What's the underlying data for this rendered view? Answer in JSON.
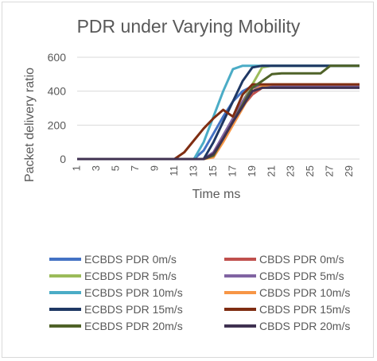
{
  "chart_data": {
    "type": "line",
    "title": "PDR under Varying Mobility",
    "xlabel": "Time ms",
    "ylabel": "Packet delivery ratio",
    "xlim": [
      1,
      30
    ],
    "ylim": [
      0,
      600
    ],
    "yticks": [
      0,
      200,
      400,
      600
    ],
    "xtick_labels": [
      "1",
      "3",
      "5",
      "7",
      "9",
      "11",
      "13",
      "15",
      "17",
      "19",
      "21",
      "23",
      "25",
      "27",
      "29"
    ],
    "x": [
      1,
      2,
      3,
      4,
      5,
      6,
      7,
      8,
      9,
      10,
      11,
      12,
      13,
      14,
      15,
      16,
      17,
      18,
      19,
      20,
      21,
      22,
      23,
      24,
      25,
      26,
      27,
      28,
      29,
      30
    ],
    "grid": "horizontal",
    "legend_position": "bottom",
    "series": [
      {
        "name": "ECBDS PDR 0m/s",
        "color": "#4472c4",
        "values": [
          0,
          0,
          0,
          0,
          0,
          0,
          0,
          0,
          0,
          0,
          0,
          0,
          0,
          50,
          150,
          250,
          340,
          400,
          430,
          430,
          430,
          430,
          430,
          430,
          430,
          430,
          430,
          430,
          430,
          430
        ]
      },
      {
        "name": "CBDS PDR 0m/s",
        "color": "#c0504d",
        "values": [
          0,
          0,
          0,
          0,
          0,
          0,
          0,
          0,
          0,
          0,
          0,
          0,
          0,
          0,
          30,
          120,
          220,
          310,
          380,
          420,
          425,
          425,
          425,
          425,
          425,
          425,
          425,
          425,
          425,
          425
        ]
      },
      {
        "name": "ECBDS PDR 5m/s",
        "color": "#9bbb59",
        "values": [
          0,
          0,
          0,
          0,
          0,
          0,
          0,
          0,
          0,
          0,
          0,
          0,
          0,
          0,
          20,
          120,
          230,
          340,
          440,
          540,
          550,
          550,
          550,
          550,
          550,
          550,
          550,
          550,
          550,
          550
        ]
      },
      {
        "name": "CBDS PDR 5m/s",
        "color": "#8064a2",
        "values": [
          0,
          0,
          0,
          0,
          0,
          0,
          0,
          0,
          0,
          0,
          0,
          0,
          0,
          0,
          40,
          140,
          240,
          340,
          420,
          430,
          430,
          430,
          430,
          430,
          430,
          430,
          430,
          430,
          430,
          430
        ]
      },
      {
        "name": "ECBDS PDR 10m/s",
        "color": "#4bacc6",
        "values": [
          0,
          0,
          0,
          0,
          0,
          0,
          0,
          0,
          0,
          0,
          0,
          0,
          0,
          100,
          250,
          400,
          530,
          550,
          550,
          550,
          550,
          550,
          550,
          550,
          550,
          550,
          550,
          550,
          550,
          550
        ]
      },
      {
        "name": "CBDS PDR 10m/s",
        "color": "#f79646",
        "values": [
          0,
          0,
          0,
          0,
          0,
          0,
          0,
          0,
          0,
          0,
          0,
          0,
          0,
          0,
          10,
          100,
          200,
          300,
          400,
          430,
          440,
          440,
          440,
          440,
          440,
          440,
          440,
          440,
          440,
          440
        ]
      },
      {
        "name": "ECBDS PDR 15m/s",
        "color": "#1f3864",
        "values": [
          0,
          0,
          0,
          0,
          0,
          0,
          0,
          0,
          0,
          0,
          0,
          0,
          0,
          0,
          100,
          220,
          340,
          460,
          540,
          550,
          550,
          550,
          550,
          550,
          550,
          550,
          550,
          550,
          550,
          550
        ]
      },
      {
        "name": "CBDS PDR 15m/s",
        "color": "#7f2d12",
        "values": [
          0,
          0,
          0,
          0,
          0,
          0,
          0,
          0,
          0,
          0,
          0,
          40,
          110,
          180,
          240,
          290,
          250,
          380,
          440,
          440,
          440,
          440,
          440,
          440,
          440,
          440,
          440,
          440,
          440,
          440
        ]
      },
      {
        "name": "ECBDS PDR 20m/s",
        "color": "#4f6228",
        "values": [
          0,
          0,
          0,
          0,
          0,
          0,
          0,
          0,
          0,
          0,
          0,
          0,
          0,
          0,
          20,
          120,
          220,
          320,
          420,
          460,
          500,
          505,
          505,
          505,
          505,
          505,
          550,
          550,
          550,
          550
        ]
      },
      {
        "name": "CBDS PDR 20m/s",
        "color": "#3f3151",
        "values": [
          0,
          0,
          0,
          0,
          0,
          0,
          0,
          0,
          0,
          0,
          0,
          0,
          0,
          0,
          30,
          120,
          220,
          310,
          400,
          420,
          420,
          420,
          420,
          420,
          420,
          420,
          420,
          420,
          420,
          420
        ]
      }
    ]
  }
}
